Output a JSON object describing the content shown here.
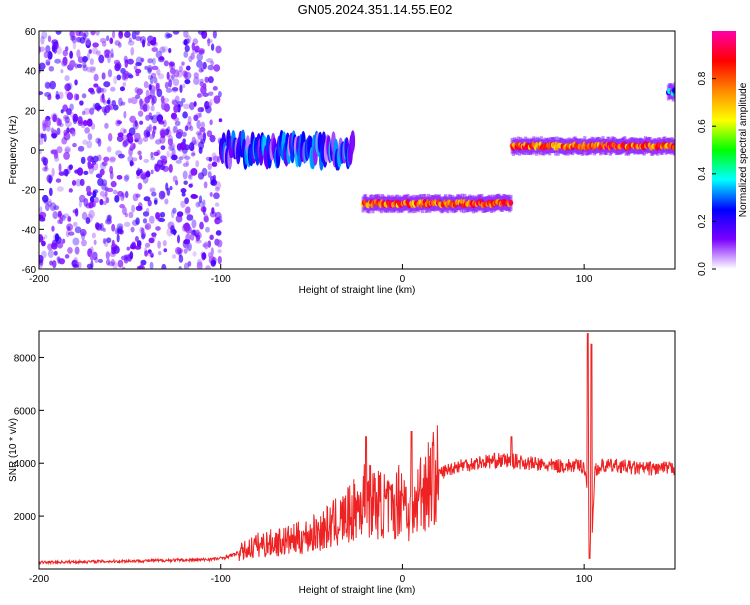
{
  "figure": {
    "title": "GN05.2024.351.14.55.E02"
  },
  "colors": {
    "snr_line": "#ee2222",
    "frame": "#000000"
  },
  "chart_data": [
    {
      "type": "heatmap",
      "title": "GN05.2024.351.14.55.E02",
      "xlabel": "Height of straight line (km)",
      "ylabel": "Frequency (Hz)",
      "xlim": [
        -200,
        150
      ],
      "ylim": [
        -60,
        60
      ],
      "xticks": [
        "-200",
        "-100",
        "0",
        "100"
      ],
      "yticks": [
        "-60",
        "-40",
        "-20",
        "0",
        "20",
        "40",
        "60"
      ],
      "colorbar": {
        "label": "Normalized spectral amplitude",
        "range": [
          0,
          1
        ],
        "ticks": [
          "0.0",
          "0.2",
          "0.4",
          "0.6",
          "0.8"
        ],
        "stops": [
          "#ffffff",
          "#7a00ff",
          "#0000ff",
          "#00ffff",
          "#00ff00",
          "#ffff00",
          "#ff8800",
          "#ff0000",
          "#ff00aa"
        ]
      },
      "features": [
        {
          "x_range": [
            -200,
            -100
          ],
          "frequency_hz": [
            -60,
            60
          ],
          "description_value": "noise",
          "amplitude": 0.08
        },
        {
          "x_range": [
            -100,
            -27
          ],
          "frequency_hz": [
            -5,
            5
          ],
          "amplitude": 0.35
        },
        {
          "x_range": [
            -22,
            60
          ],
          "frequency_hz": [
            -28,
            -26
          ],
          "amplitude": 0.95
        },
        {
          "x_range": [
            60,
            150
          ],
          "frequency_hz": [
            1,
            3
          ],
          "amplitude": 0.95
        },
        {
          "x_range": [
            146,
            150
          ],
          "frequency_hz": [
            28,
            30
          ],
          "amplitude": 0.4
        }
      ]
    },
    {
      "type": "line",
      "xlabel": "Height of straight line (km)",
      "ylabel": "SNR (10 * v/v)",
      "xlim": [
        -200,
        150
      ],
      "ylim": [
        0,
        9000
      ],
      "xticks": [
        "-200",
        "-100",
        "0",
        "100"
      ],
      "yticks": [
        "2000",
        "4000",
        "6000",
        "8000"
      ],
      "x": [
        -200,
        -150,
        -110,
        -100,
        -90,
        -80,
        -70,
        -60,
        -50,
        -40,
        -30,
        -25,
        -20,
        -15,
        -10,
        -5,
        0,
        5,
        10,
        20,
        30,
        40,
        50,
        60,
        70,
        80,
        90,
        100,
        102,
        104,
        106,
        108,
        110,
        120,
        130,
        140,
        150
      ],
      "values": [
        250,
        300,
        350,
        400,
        600,
        900,
        1000,
        1100,
        1300,
        1600,
        2000,
        2300,
        2700,
        2500,
        2400,
        2200,
        3000,
        1800,
        3000,
        3600,
        3900,
        4000,
        4100,
        4100,
        4000,
        3900,
        3900,
        3900,
        3000,
        700,
        3800,
        3800,
        3900,
        3900,
        3800,
        3800,
        3800
      ],
      "spikes": [
        {
          "x": -20,
          "value": 5000
        },
        {
          "x": 5,
          "value": 5200
        },
        {
          "x": 60,
          "value": 5000
        },
        {
          "x": 102,
          "value": 8900
        },
        {
          "x": 104,
          "value": 8500
        },
        {
          "x": 103,
          "value": 400
        }
      ]
    }
  ]
}
